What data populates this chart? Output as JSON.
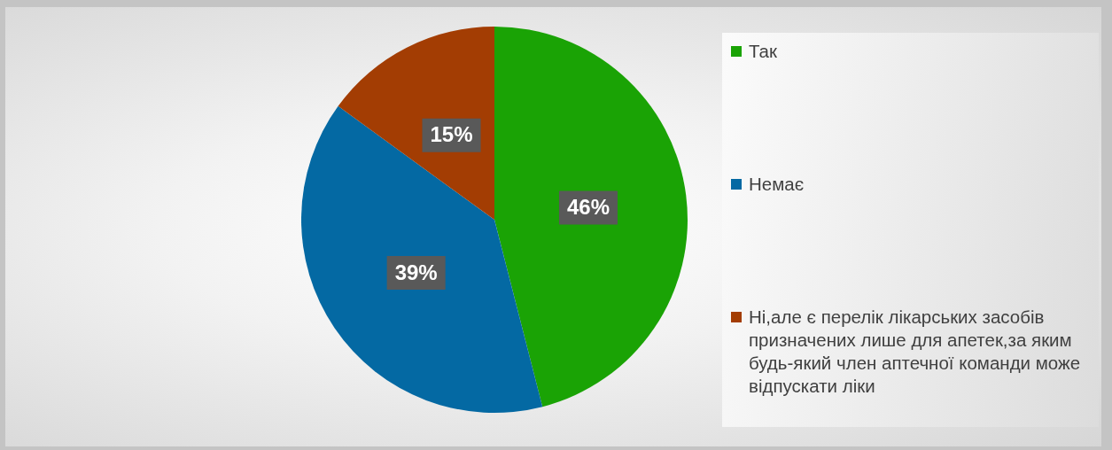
{
  "chart_data": {
    "type": "pie",
    "categories": [
      "Так",
      "Немає",
      "Ні,але є перелік лікарських засобів призначених лише для апетек,за яким будь-який член аптечної команди може відпускати ліки"
    ],
    "values": [
      46,
      39,
      15
    ],
    "colors": [
      "#1aa305",
      "#0469a3",
      "#a33d03"
    ],
    "value_labels": [
      "46%",
      "39%",
      "15%"
    ],
    "legend": "right"
  }
}
